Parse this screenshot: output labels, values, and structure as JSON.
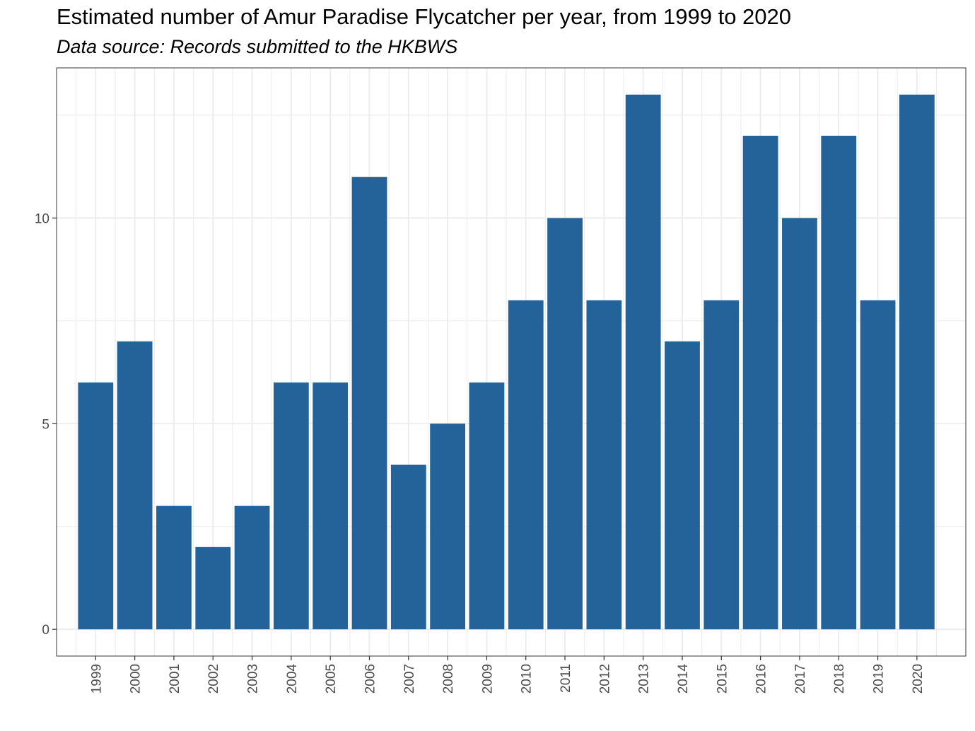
{
  "chart_data": {
    "type": "bar",
    "title": "Estimated number of Amur Paradise Flycatcher per year, from 1999 to 2020",
    "subtitle": "Data source: Records submitted to the HKBWS",
    "xlabel": "",
    "ylabel": "",
    "categories": [
      "1999",
      "2000",
      "2001",
      "2002",
      "2003",
      "2004",
      "2005",
      "2006",
      "2007",
      "2008",
      "2009",
      "2010",
      "2011",
      "2012",
      "2013",
      "2014",
      "2015",
      "2016",
      "2017",
      "2018",
      "2019",
      "2020"
    ],
    "values": [
      6,
      7,
      3,
      2,
      3,
      6,
      6,
      11,
      4,
      5,
      6,
      8,
      10,
      8,
      13,
      7,
      8,
      12,
      10,
      12,
      8,
      13
    ],
    "yticks": [
      "0",
      "5",
      "10"
    ],
    "ylim": [
      -0.65,
      13.65
    ],
    "grid": true,
    "legend": "none",
    "colors": {
      "bar": "#236399",
      "grid": "#ebebeb",
      "panel_border": "#333333",
      "tick_text": "#4d4d4d"
    }
  }
}
